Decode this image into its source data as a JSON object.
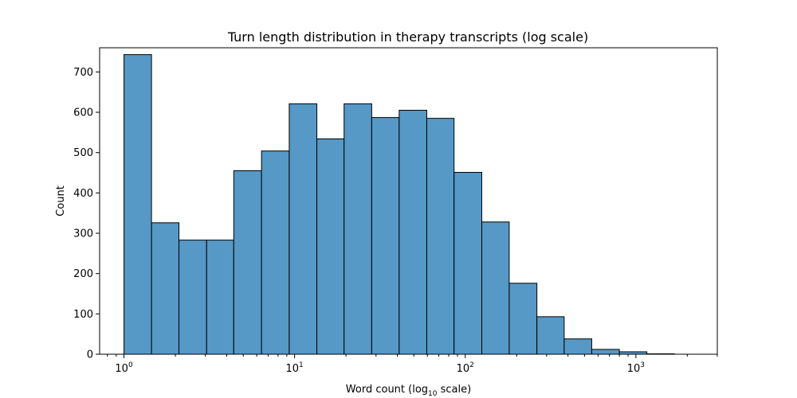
{
  "chart_data": {
    "type": "bar",
    "title": "Turn length distribution in therapy transcripts (log scale)",
    "xlabel_main": "Word count (log",
    "xlabel_sub": "10",
    "xlabel_tail": " scale)",
    "ylabel": "Count",
    "x_scale": "log10",
    "xlim": [
      0.72,
      3000
    ],
    "ylim": [
      0,
      760
    ],
    "y_ticks": [
      0,
      100,
      200,
      300,
      400,
      500,
      600,
      700
    ],
    "x_major_ticks": [
      {
        "value": 1,
        "base": "10",
        "exp": "0"
      },
      {
        "value": 10,
        "base": "10",
        "exp": "1"
      },
      {
        "value": 100,
        "base": "10",
        "exp": "2"
      },
      {
        "value": 1000,
        "base": "10",
        "exp": "3"
      }
    ],
    "bin_edges": [
      1,
      1.45,
      2.1,
      3.05,
      4.4,
      6.4,
      9.3,
      13.5,
      19.5,
      28.3,
      41,
      59.5,
      86,
      125,
      181,
      263,
      380,
      551,
      800,
      1160,
      1680
    ],
    "counts": [
      743,
      326,
      283,
      283,
      455,
      504,
      621,
      534,
      621,
      587,
      605,
      585,
      451,
      328,
      176,
      93,
      38,
      12,
      6,
      1
    ],
    "bar_color": "#5698c6",
    "edge_color": "#000000",
    "grid": false
  }
}
